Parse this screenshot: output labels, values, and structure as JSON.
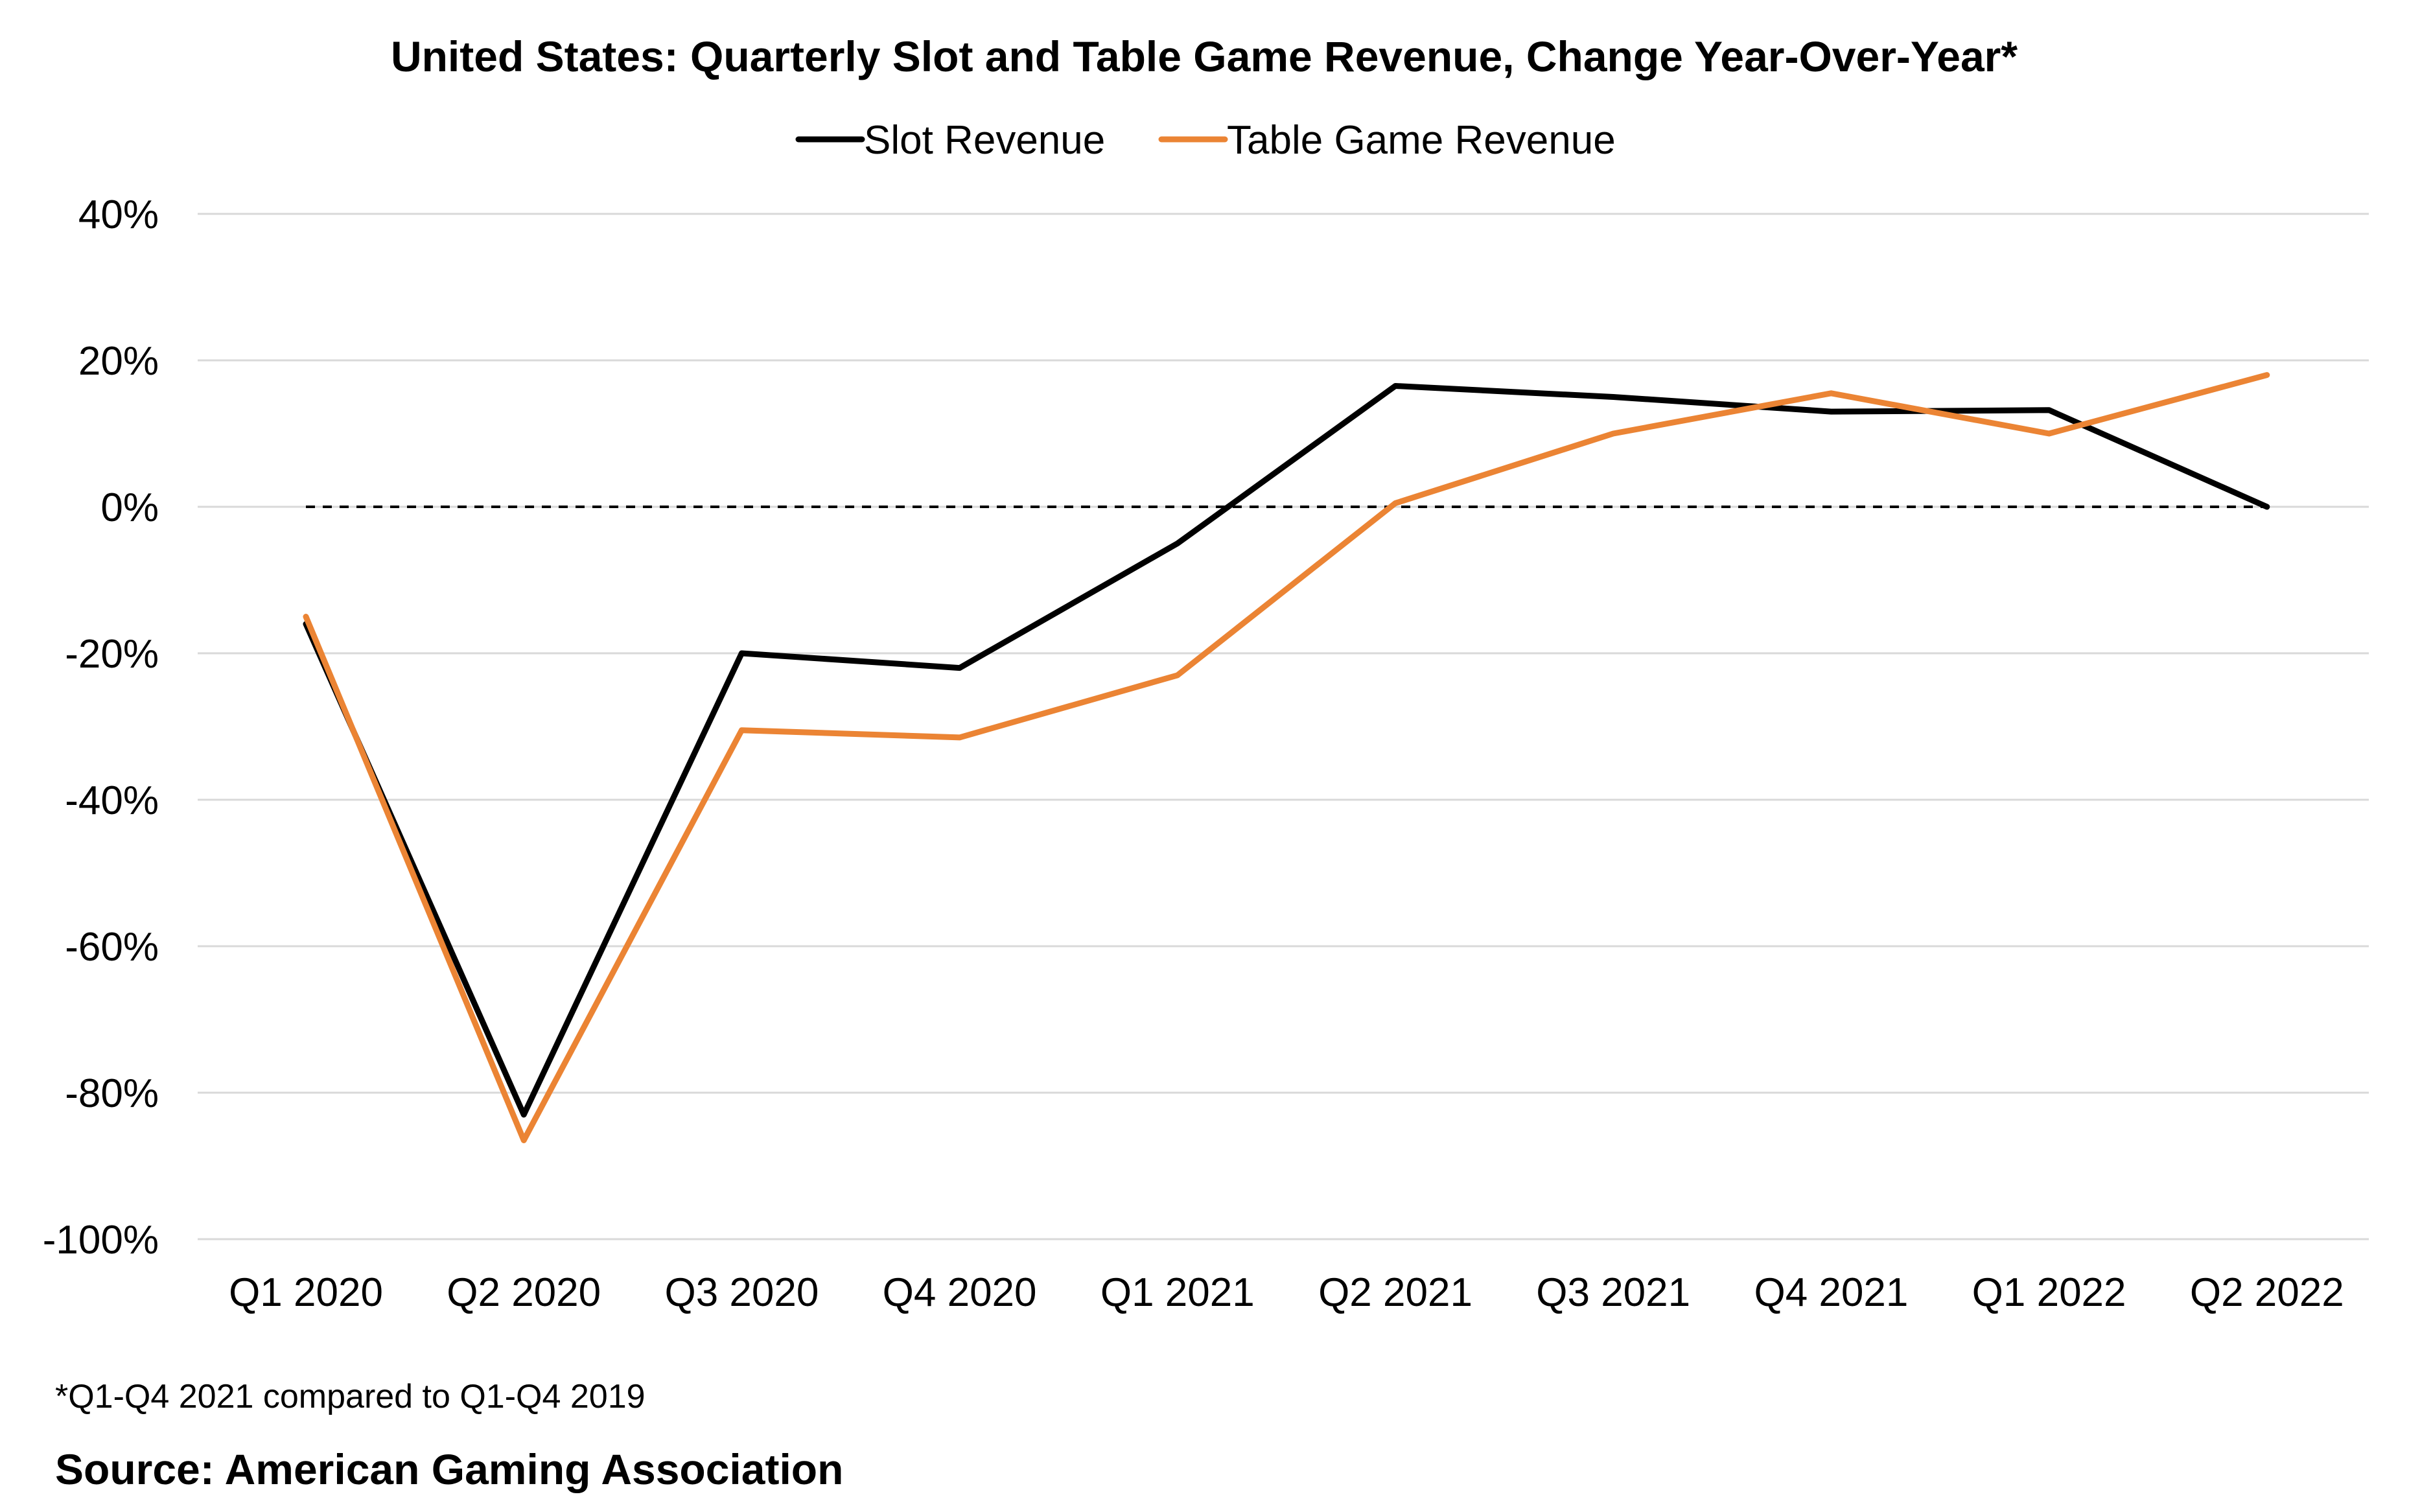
{
  "chart_data": {
    "type": "line",
    "title": "United States: Quarterly Slot and Table Game Revenue, Change Year-Over-Year*",
    "categories": [
      "Q1 2020",
      "Q2 2020",
      "Q3 2020",
      "Q4 2020",
      "Q1 2021",
      "Q2 2021",
      "Q3 2021",
      "Q4 2021",
      "Q1 2022",
      "Q2 2022"
    ],
    "series": [
      {
        "name": "Slot Revenue",
        "color": "#000000",
        "values": [
          -16,
          -83,
          -20,
          -22,
          -5,
          16.5,
          15,
          13,
          13.2,
          0
        ]
      },
      {
        "name": "Table Game Revenue",
        "color": "#EB8434",
        "values": [
          -15,
          -86.5,
          -30.5,
          -31.5,
          -23,
          0.5,
          10,
          15.5,
          10,
          18
        ]
      }
    ],
    "ylim": [
      -100,
      40
    ],
    "yticks": [
      40,
      20,
      0,
      -20,
      -40,
      -60,
      -80,
      -100
    ],
    "ytick_labels": [
      "40%",
      "20%",
      "0%",
      "-20%",
      "-40%",
      "-60%",
      "-80%",
      "-100%"
    ],
    "y_format": "percent",
    "reference_line": {
      "value": 0,
      "style": "dashed"
    },
    "grid": "horizontal",
    "legend": "top-center",
    "xlabel": "",
    "ylabel": ""
  },
  "footnote": "*Q1-Q4 2021 compared to Q1-Q4 2019",
  "source": "Source: American Gaming Association"
}
